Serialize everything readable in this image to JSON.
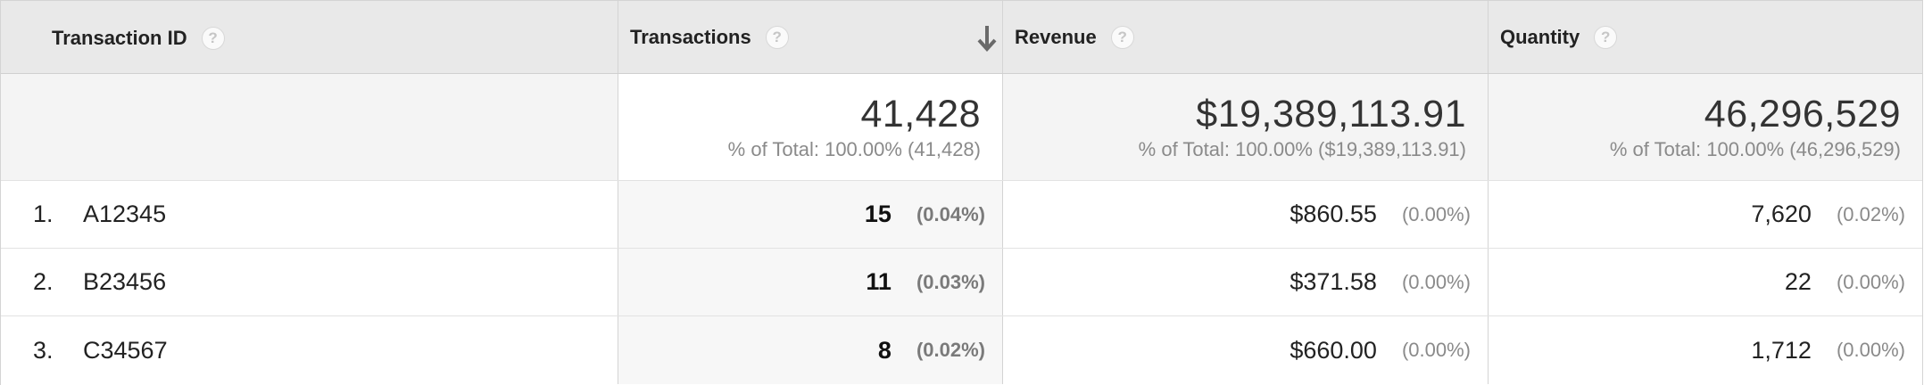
{
  "columns": [
    {
      "label": "Transaction ID"
    },
    {
      "label": "Transactions"
    },
    {
      "label": "Revenue"
    },
    {
      "label": "Quantity"
    }
  ],
  "help_symbol": "?",
  "totals": {
    "transactions": {
      "value": "41,428",
      "pct": "% of Total: 100.00% (41,428)"
    },
    "revenue": {
      "value": "$19,389,113.91",
      "pct": "% of Total: 100.00% ($19,389,113.91)"
    },
    "quantity": {
      "value": "46,296,529",
      "pct": "% of Total: 100.00% (46,296,529)"
    }
  },
  "rows": [
    {
      "rank": "1.",
      "id": "A12345",
      "transactions": "15",
      "transactions_pct": "(0.04%)",
      "revenue": "$860.55",
      "revenue_pct": "(0.00%)",
      "quantity": "7,620",
      "quantity_pct": "(0.02%)"
    },
    {
      "rank": "2.",
      "id": "B23456",
      "transactions": "11",
      "transactions_pct": "(0.03%)",
      "revenue": "$371.58",
      "revenue_pct": "(0.00%)",
      "quantity": "22",
      "quantity_pct": "(0.00%)"
    },
    {
      "rank": "3.",
      "id": "C34567",
      "transactions": "8",
      "transactions_pct": "(0.02%)",
      "revenue": "$660.00",
      "revenue_pct": "(0.00%)",
      "quantity": "1,712",
      "quantity_pct": "(0.00%)"
    }
  ],
  "sort": {
    "column": "Transactions",
    "direction": "descending",
    "icon": "arrow-down-icon"
  },
  "colors": {
    "header_bg": "#e9e9e9",
    "border": "#d4d4d4",
    "sorted_col_bg": "#f7f7f7"
  }
}
